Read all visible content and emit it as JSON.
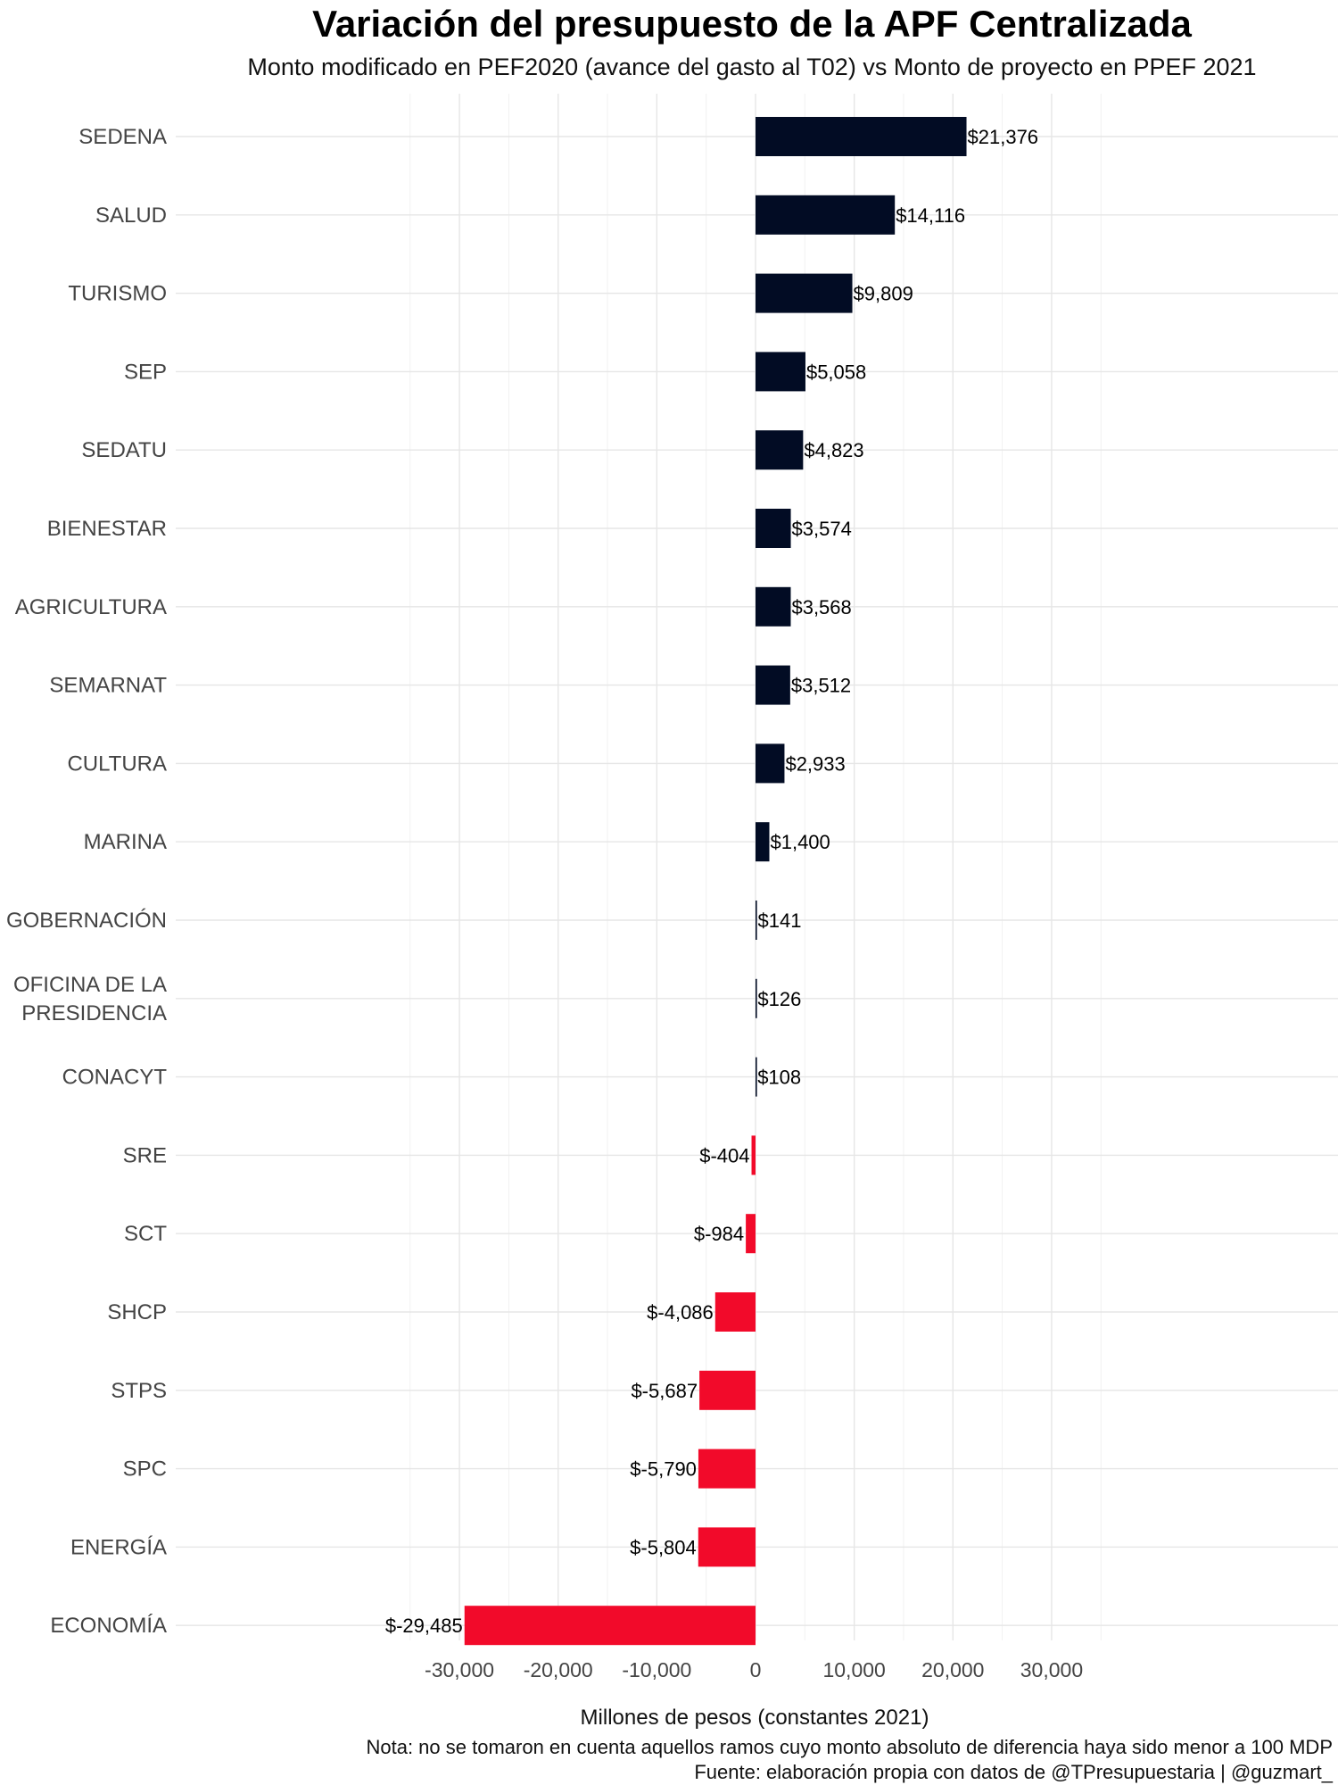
{
  "chart_data": {
    "type": "bar",
    "orientation": "horizontal",
    "title": "Variación del presupuesto de la APF Centralizada",
    "subtitle": "Monto modificado en PEF2020 (avance del gasto al T02) vs Monto de proyecto en PPEF 2021",
    "xlabel": "Millones de pesos (constantes 2021)",
    "ylabel": "",
    "xlim": [
      -40000,
      40000
    ],
    "x_ticks": [
      -30000,
      -20000,
      -10000,
      0,
      10000,
      20000,
      30000
    ],
    "x_tick_labels": [
      "-30,000",
      "-20,000",
      "-10,000",
      "0",
      "10,000",
      "20,000",
      "30,000"
    ],
    "grid": true,
    "legend": "none",
    "colors": {
      "positive": "#020c24",
      "negative": "#f20a2a"
    },
    "categories": [
      {
        "lines": [
          "SEDENA"
        ],
        "value": 21376,
        "label": "$21,376"
      },
      {
        "lines": [
          "SALUD"
        ],
        "value": 14116,
        "label": "$14,116"
      },
      {
        "lines": [
          "TURISMO"
        ],
        "value": 9809,
        "label": "$9,809"
      },
      {
        "lines": [
          "SEP"
        ],
        "value": 5058,
        "label": "$5,058"
      },
      {
        "lines": [
          "SEDATU"
        ],
        "value": 4823,
        "label": "$4,823"
      },
      {
        "lines": [
          "BIENESTAR"
        ],
        "value": 3574,
        "label": "$3,574"
      },
      {
        "lines": [
          "AGRICULTURA"
        ],
        "value": 3568,
        "label": "$3,568"
      },
      {
        "lines": [
          "SEMARNAT"
        ],
        "value": 3512,
        "label": "$3,512"
      },
      {
        "lines": [
          "CULTURA"
        ],
        "value": 2933,
        "label": "$2,933"
      },
      {
        "lines": [
          "MARINA"
        ],
        "value": 1400,
        "label": "$1,400"
      },
      {
        "lines": [
          "GOBERNACIÓN"
        ],
        "value": 141,
        "label": "$141"
      },
      {
        "lines": [
          "OFICINA DE LA",
          "PRESIDENCIA"
        ],
        "value": 126,
        "label": "$126"
      },
      {
        "lines": [
          "CONACYT"
        ],
        "value": 108,
        "label": "$108"
      },
      {
        "lines": [
          "SRE"
        ],
        "value": -404,
        "label": "$-404"
      },
      {
        "lines": [
          "SCT"
        ],
        "value": -984,
        "label": "$-984"
      },
      {
        "lines": [
          "SHCP"
        ],
        "value": -4086,
        "label": "$-4,086"
      },
      {
        "lines": [
          "STPS"
        ],
        "value": -5687,
        "label": "$-5,687"
      },
      {
        "lines": [
          "SPC"
        ],
        "value": -5790,
        "label": "$-5,790"
      },
      {
        "lines": [
          "ENERGÍA"
        ],
        "value": -5804,
        "label": "$-5,804"
      },
      {
        "lines": [
          "ECONOMÍA"
        ],
        "value": -29485,
        "label": "$-29,485"
      }
    ],
    "captions": [
      "Nota: no se tomaron en cuenta aquellos ramos cuyo monto absoluto de diferencia haya sido menor a 100 MDP",
      "Fuente: elaboración propia con datos de @TPresupuestaria | @guzmart_"
    ]
  }
}
